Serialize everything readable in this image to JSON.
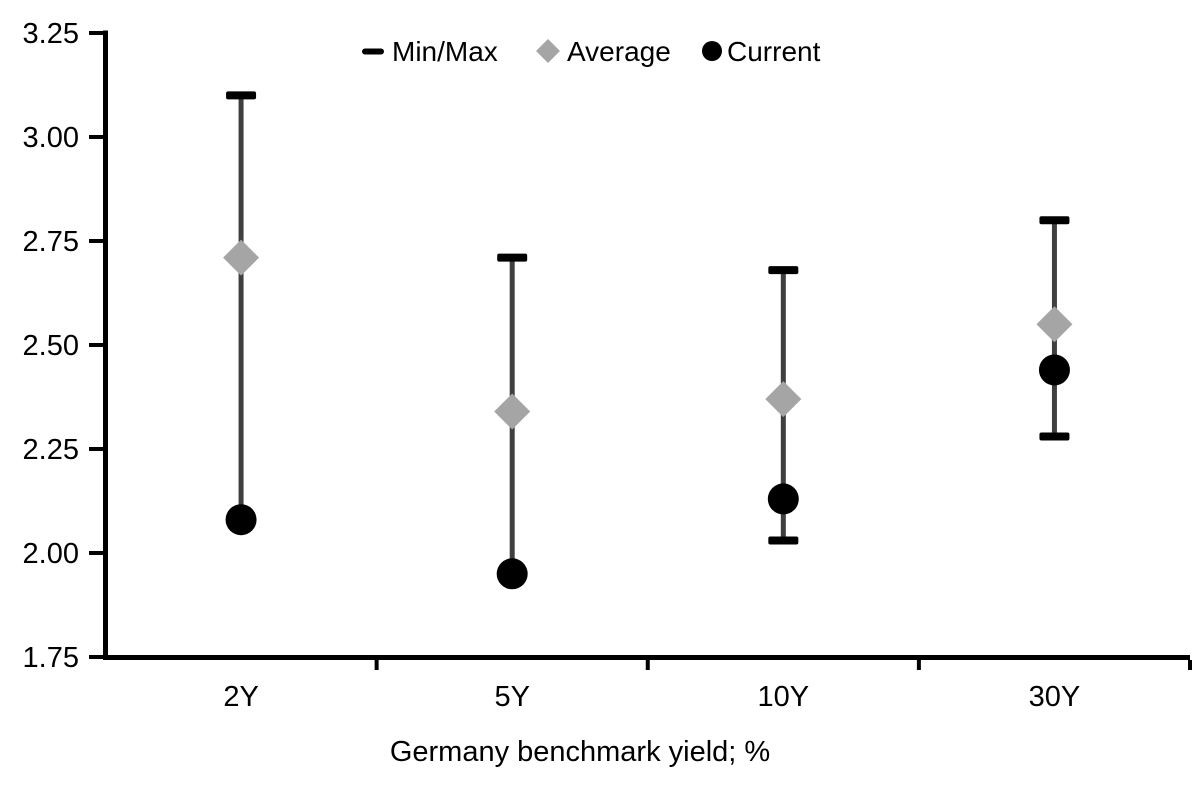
{
  "chart_data": {
    "type": "scatter",
    "subtype": "min-max-range-with-markers",
    "title": "",
    "xlabel": "Germany benchmark yield; %",
    "ylabel": "",
    "categories": [
      "2Y",
      "5Y",
      "10Y",
      "30Y"
    ],
    "series": [
      {
        "name": "Min/Max",
        "marker": "dash",
        "role": "range",
        "min": [
          2.08,
          1.95,
          2.03,
          2.28
        ],
        "max": [
          3.1,
          2.71,
          2.68,
          2.8
        ]
      },
      {
        "name": "Average",
        "marker": "diamond",
        "role": "point",
        "values": [
          2.71,
          2.34,
          2.37,
          2.55
        ]
      },
      {
        "name": "Current",
        "marker": "circle",
        "role": "point",
        "values": [
          2.08,
          1.95,
          2.13,
          2.44
        ]
      }
    ],
    "ylim": [
      1.75,
      3.25
    ],
    "ytick_step": 0.25,
    "yticks": [
      {
        "label": "3.25",
        "value": 3.25
      },
      {
        "label": "3.00",
        "value": 3.0
      },
      {
        "label": "2.75",
        "value": 2.75
      },
      {
        "label": "2.50",
        "value": 2.5
      },
      {
        "label": "2.25",
        "value": 2.25
      },
      {
        "label": "2.00",
        "value": 2.0
      },
      {
        "label": "1.75",
        "value": 1.75
      }
    ],
    "grid": false,
    "legend_position": "top-center",
    "colors": {
      "background": "#ffffff",
      "axis": "#000000",
      "text": "#000000",
      "minmax_cap": "#000000",
      "range_line": "#3f3f3f",
      "average": "#a5a5a5",
      "current": "#000000"
    }
  }
}
